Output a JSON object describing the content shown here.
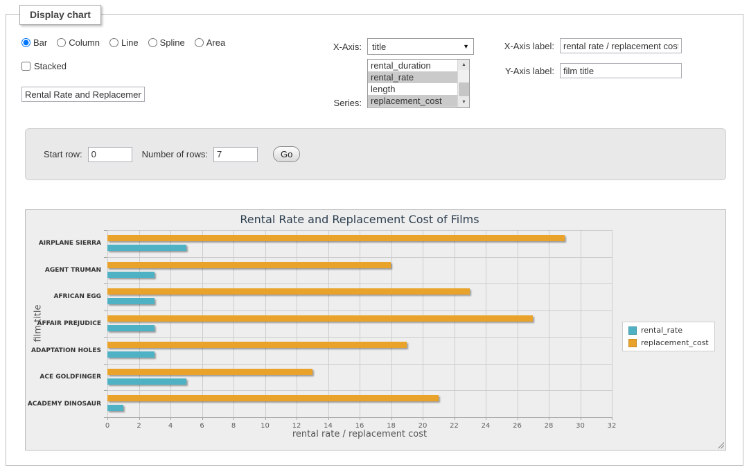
{
  "panel": {
    "legend_title": "Display chart"
  },
  "controls": {
    "chart_types": [
      {
        "label": "Bar",
        "selected": true
      },
      {
        "label": "Column",
        "selected": false
      },
      {
        "label": "Line",
        "selected": false
      },
      {
        "label": "Spline",
        "selected": false
      },
      {
        "label": "Area",
        "selected": false
      }
    ],
    "stacked_label": "Stacked",
    "stacked_checked": false,
    "chart_title_value": "Rental Rate and Replacement Cost of Films",
    "x_axis_caption": "X-Axis:",
    "x_axis_selected": "title",
    "series_caption": "Series:",
    "series_options": [
      {
        "label": "rental_duration",
        "selected": false
      },
      {
        "label": "rental_rate",
        "selected": true
      },
      {
        "label": "length",
        "selected": false
      },
      {
        "label": "replacement_cost",
        "selected": true
      }
    ],
    "x_axis_label_caption": "X-Axis label:",
    "x_axis_label_value": "rental rate / replacement cost",
    "y_axis_label_caption": "Y-Axis label:",
    "y_axis_label_value": "film title"
  },
  "row_controls": {
    "start_row_caption": "Start row:",
    "start_row_value": "0",
    "num_rows_caption": "Number of rows:",
    "num_rows_value": "7",
    "go_label": "Go"
  },
  "chart_data": {
    "type": "bar",
    "title": "Rental Rate and Replacement Cost of Films",
    "xlabel": "rental rate / replacement cost",
    "ylabel": "film title",
    "categories": [
      "AIRPLANE SIERRA",
      "AGENT TRUMAN",
      "AFRICAN EGG",
      "AFFAIR PREJUDICE",
      "ADAPTATION HOLES",
      "ACE GOLDFINGER",
      "ACADEMY DINOSAUR"
    ],
    "series": [
      {
        "name": "rental_rate",
        "color": "#4fb2c4",
        "values": [
          4.99,
          2.99,
          2.99,
          2.99,
          2.99,
          4.99,
          0.99
        ]
      },
      {
        "name": "replacement_cost",
        "color": "#e9a32b",
        "values": [
          28.99,
          17.99,
          22.99,
          26.99,
          18.99,
          12.99,
          20.99
        ]
      }
    ],
    "group_bar_order": [
      "replacement_cost",
      "rental_rate"
    ],
    "xlim": [
      0,
      32
    ],
    "x_ticks": [
      0,
      2,
      4,
      6,
      8,
      10,
      12,
      14,
      16,
      18,
      20,
      22,
      24,
      26,
      28,
      30,
      32
    ],
    "grid": true,
    "legend_position": "right"
  }
}
